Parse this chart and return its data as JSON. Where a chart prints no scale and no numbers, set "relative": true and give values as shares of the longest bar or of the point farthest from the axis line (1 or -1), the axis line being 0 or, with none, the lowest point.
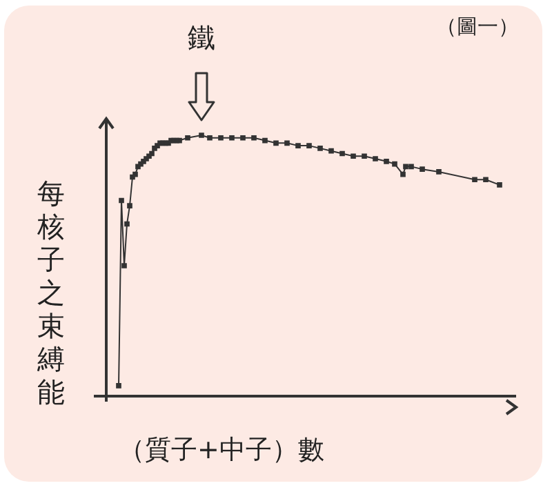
{
  "chart_data": {
    "type": "line",
    "relative": true,
    "ylabel": "每核子之束縛能",
    "xlabel": "（質子+中子）數",
    "annotations": [
      "（圖一）",
      "鐵"
    ],
    "categories": [
      null,
      null,
      null,
      null,
      null,
      null,
      null,
      null,
      null,
      null,
      null,
      null,
      null,
      null,
      null,
      null,
      null,
      null,
      null,
      null,
      null,
      null,
      null,
      null,
      null,
      null,
      null,
      null,
      null,
      null,
      null,
      null,
      null,
      null,
      null,
      null,
      null,
      null,
      null,
      null,
      null,
      null,
      null,
      null,
      null,
      null,
      null,
      null,
      null,
      null,
      null,
      null,
      null,
      null,
      null,
      null,
      null,
      null,
      null,
      null,
      null,
      null,
      null,
      null,
      null,
      null,
      null,
      null,
      null,
      null,
      null,
      null,
      null,
      null,
      null,
      null,
      null,
      null,
      null,
      null,
      null,
      null,
      null,
      null,
      null,
      null,
      null,
      null,
      null,
      null,
      null,
      null,
      null,
      null,
      null,
      null,
      null,
      null,
      null,
      null,
      null,
      null,
      null,
      null,
      null,
      null,
      null,
      null,
      null,
      null,
      null,
      null,
      null,
      null,
      null,
      null,
      null,
      null,
      null,
      null,
      null,
      null,
      null,
      null,
      null,
      null,
      null,
      null,
      null,
      null,
      null,
      null,
      null,
      null,
      null,
      null,
      null,
      null,
      null
    ],
    "series": [
      {
        "color": "#333333",
        "values": [
          0.04,
          0.75,
          0.5,
          0.66,
          0.73,
          0.84,
          0.85,
          0.88,
          0.89,
          0.9,
          0.91,
          0.92,
          0.93,
          0.95,
          0.96,
          0.97,
          0.97,
          0.97,
          0.97,
          0.98,
          0.98,
          0.98,
          0.98,
          null,
          null,
          0.99,
          null,
          null,
          null,
          null,
          1,
          null,
          null,
          0.99,
          null,
          null,
          null,
          0.99,
          null,
          null,
          null,
          0.99,
          null,
          null,
          null,
          0.99,
          null,
          null,
          null,
          0.99,
          null,
          null,
          null,
          0.98,
          null,
          null,
          null,
          0.97,
          null,
          null,
          null,
          0.97,
          null,
          null,
          null,
          0.96,
          null,
          null,
          null,
          0.96,
          null,
          null,
          null,
          0.95,
          null,
          null,
          null,
          0.94,
          null,
          null,
          null,
          0.93,
          null,
          null,
          null,
          0.92,
          null,
          null,
          null,
          0.92,
          null,
          null,
          null,
          0.91,
          null,
          null,
          null,
          0.9,
          null,
          null,
          0.89,
          null,
          null,
          0.85,
          0.88,
          null,
          0.88,
          null,
          null,
          null,
          0.87,
          null,
          null,
          null,
          null,
          null,
          0.86,
          null,
          null,
          null,
          null,
          null,
          null,
          null,
          null,
          null,
          null,
          null,
          null,
          0.83,
          null,
          null,
          null,
          0.83,
          null,
          null,
          null,
          null,
          0.81
        ]
      }
    ],
    "marker": "square",
    "grid": false,
    "legend": false
  }
}
